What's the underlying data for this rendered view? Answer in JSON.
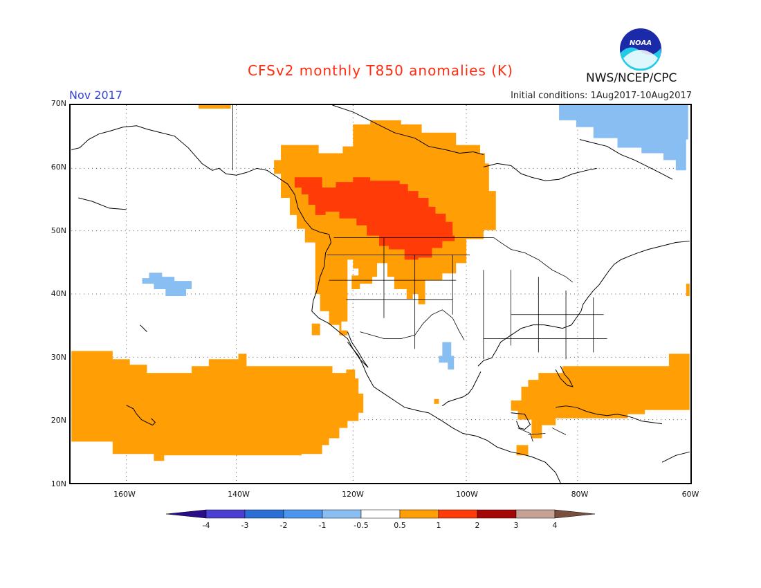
{
  "header": {
    "title": "CFSv2 monthly T850 anomalies (K)",
    "valid_month": "Nov 2017",
    "initial_conditions": "Initial conditions: 1Aug2017-10Aug2017",
    "agency": "NWS/NCEP/CPC",
    "logo_text": "NOAA"
  },
  "axes": {
    "lat_labels": [
      "70N",
      "60N",
      "50N",
      "40N",
      "30N",
      "20N",
      "10N"
    ],
    "lon_labels": [
      "160W",
      "140W",
      "120W",
      "100W",
      "80W",
      "60W"
    ]
  },
  "colorbar": {
    "labels": [
      "-4",
      "-3",
      "-2",
      "-1",
      "-0.5",
      "0.5",
      "1",
      "2",
      "3",
      "4"
    ],
    "colors": [
      "#2a0c8a",
      "#4a3fd0",
      "#2b6fd6",
      "#4a96ee",
      "#88bef2",
      "#ffffff",
      "#ff9e05",
      "#ff3b08",
      "#a40606",
      "#c7a193",
      "#7b4f40"
    ]
  },
  "palette": {
    "weak_warm": "#ff9e05",
    "moderate_warm": "#ff3b08",
    "weak_cold": "#88bef2",
    "title_red": "#ff2a10",
    "date_blue": "#3344dd"
  }
}
